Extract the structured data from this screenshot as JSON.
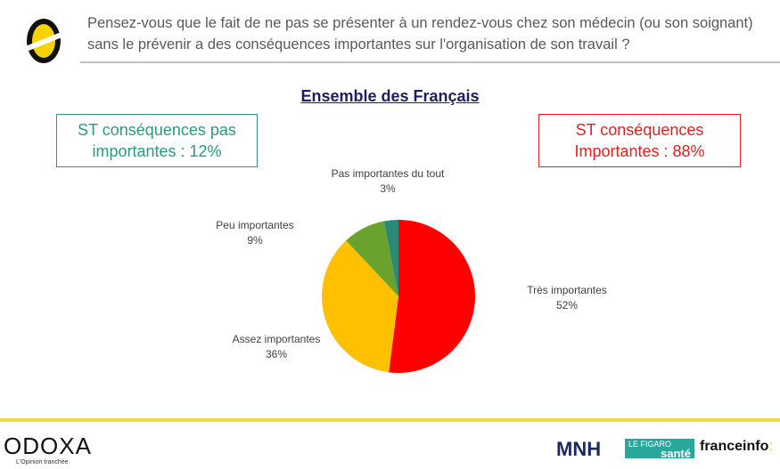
{
  "question": "Pensez-vous que le fait de ne pas se présenter à un rendez-vous chez son médecin (ou son soignant) sans le prévenir a des conséquences importantes sur l'organisation de son travail ?",
  "boxes": {
    "left": "ST conséquences pas importantes : 12%",
    "right": "ST conséquences Importantes : 88%"
  },
  "footer": {
    "brand": "ODOXA",
    "tagline": "L'Opinion tranchée",
    "partner1": "MNH",
    "partner2_top": "LE FIGARO",
    "partner2_bottom": "santé",
    "partner3": "franceinfo",
    "partner3_colon": ":"
  },
  "chart_data": {
    "type": "pie",
    "title": "Ensemble des Français",
    "slices": [
      {
        "label": "Très importantes",
        "value": 52,
        "display": "52%",
        "color": "#ff0000"
      },
      {
        "label": "Assez importantes",
        "value": 36,
        "display": "36%",
        "color": "#ffc000"
      },
      {
        "label": "Peu importantes",
        "value": 9,
        "display": "9%",
        "color": "#6aa22e"
      },
      {
        "label": "Pas importantes du tout",
        "value": 3,
        "display": "3%",
        "color": "#2a8a78"
      }
    ]
  }
}
